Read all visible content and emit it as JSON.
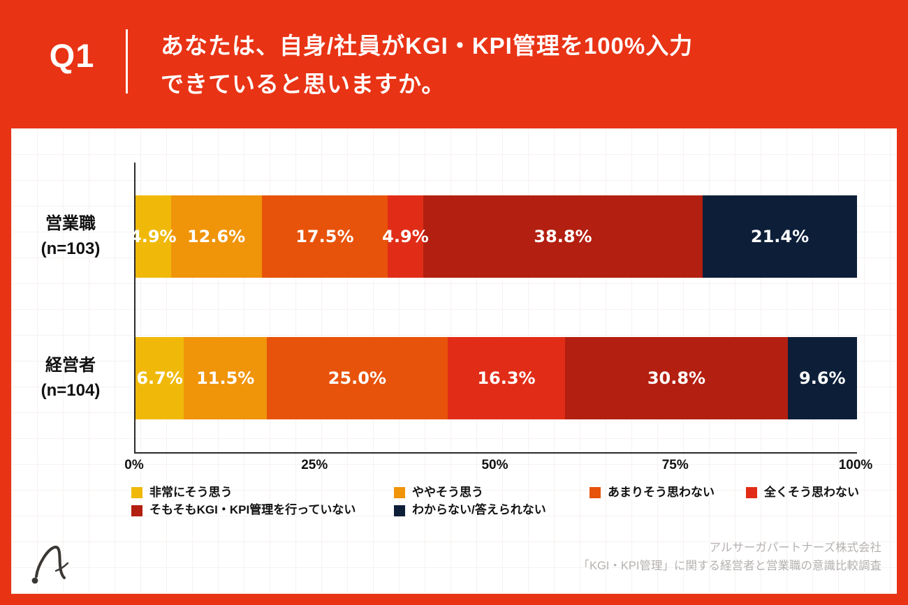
{
  "header": {
    "question_number": "Q1",
    "title_line1": "あなたは、自身/社員がKGI・KPI管理を100%入力",
    "title_line2": "できていると思いますか。"
  },
  "chart_data": {
    "type": "bar",
    "orientation": "horizontal",
    "stacked": true,
    "xlim": [
      0,
      100
    ],
    "x_ticks": [
      {
        "label": "0%",
        "value": 0
      },
      {
        "label": "25%",
        "value": 25
      },
      {
        "label": "50%",
        "value": 50
      },
      {
        "label": "75%",
        "value": 75
      },
      {
        "label": "100%",
        "value": 100
      }
    ],
    "grid": true,
    "legend_position": "bottom",
    "categories": [
      {
        "label": "営業職",
        "n_label": "(n=103)"
      },
      {
        "label": "経営者",
        "n_label": "(n=104)"
      }
    ],
    "series": [
      {
        "name": "非常にそう思う",
        "color": "#f0b90a",
        "values": [
          4.9,
          6.7
        ]
      },
      {
        "name": "ややそう思う",
        "color": "#f0940a",
        "values": [
          12.6,
          11.5
        ]
      },
      {
        "name": "あまりそう思わない",
        "color": "#e7530a",
        "values": [
          17.5,
          25.0
        ]
      },
      {
        "name": "全くそう思わない",
        "color": "#e12d17",
        "values": [
          4.9,
          16.3
        ]
      },
      {
        "name": "そもそもKGI・KPI管理を行っていない",
        "color": "#b31f10",
        "values": [
          38.8,
          30.8
        ]
      },
      {
        "name": "わからない/答えられない",
        "color": "#0d1f38",
        "values": [
          21.4,
          9.6
        ]
      }
    ],
    "value_label_format": "percent_one_decimal"
  },
  "footer": {
    "source_line1": "アルサーガパートナーズ株式会社",
    "source_line2": "「KGI・KPI管理」に関する経営者と営業職の意識比較調査"
  },
  "colors": {
    "frame_red": "#e83315",
    "card_bg": "#ffffff",
    "axis": "#2b2b2b",
    "footer_text": "#b5b2b0"
  }
}
